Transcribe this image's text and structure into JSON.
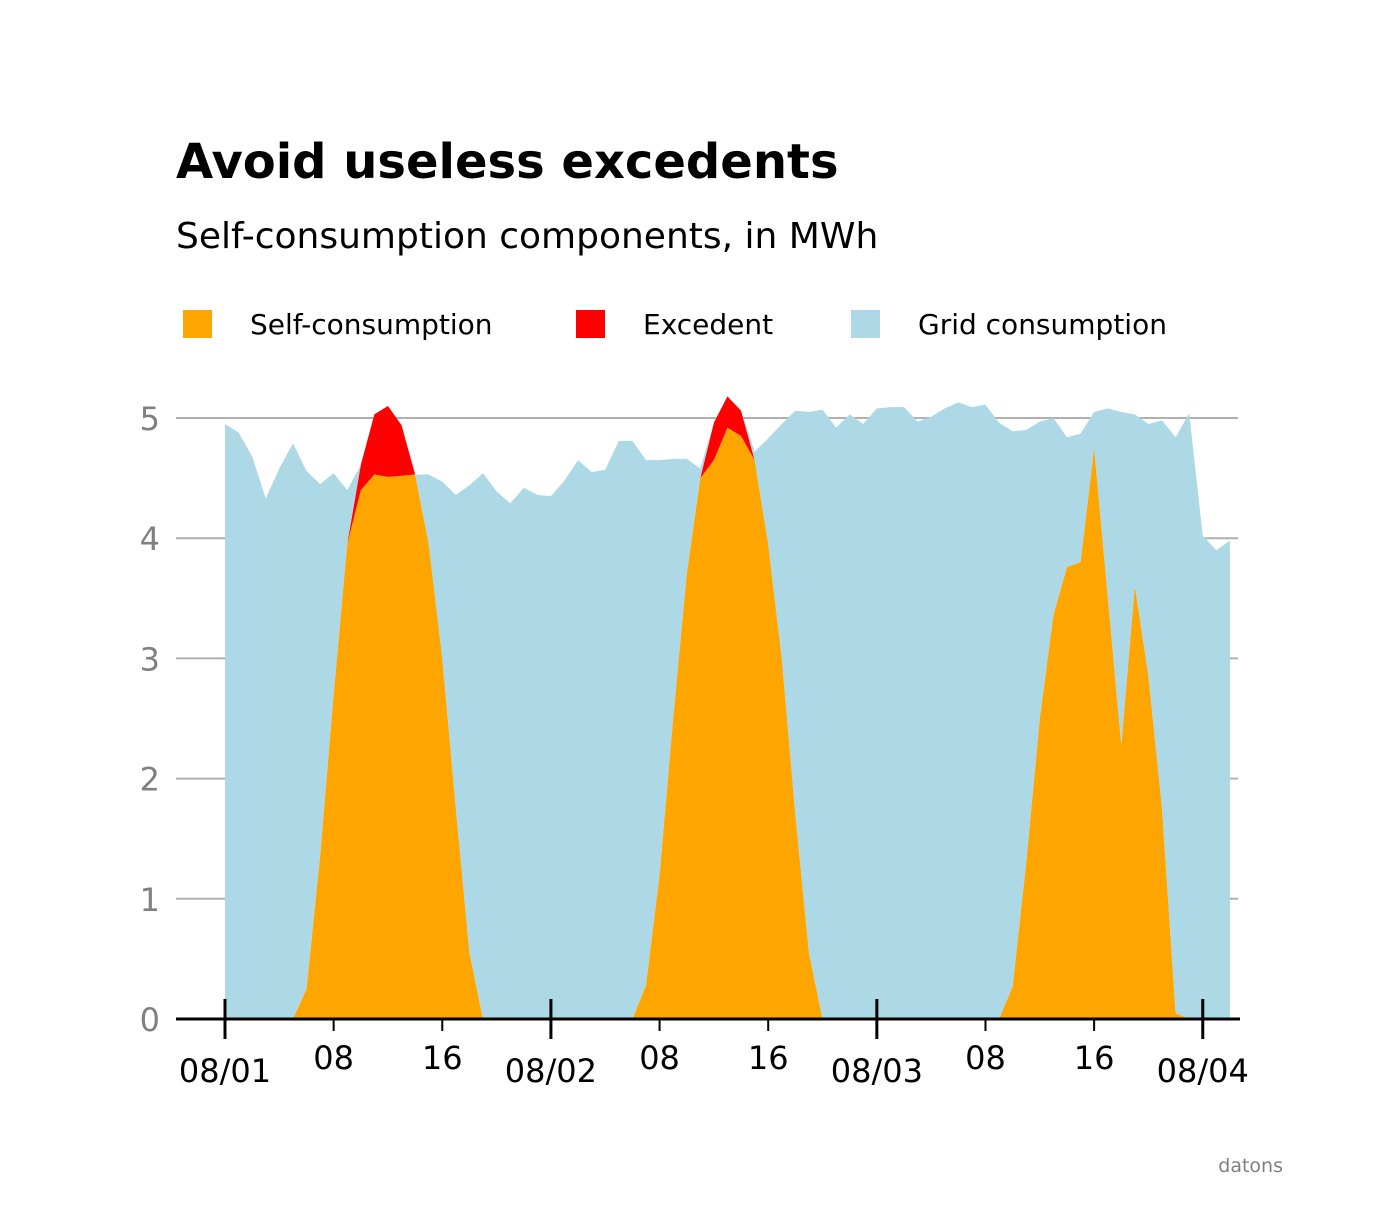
{
  "chart_data": {
    "type": "area",
    "stacked": true,
    "title": "Avoid useless excedents",
    "subtitle": "Self-consumption components, in MWh",
    "xlabel": "",
    "ylabel": "",
    "ylim": [
      0,
      5.3
    ],
    "yticks": [
      0,
      1,
      2,
      3,
      4,
      5
    ],
    "grid": "horizontal",
    "legend_position": "top-left",
    "x_start": "08/01 00:00",
    "x_end": "08/04 00:00",
    "x_step_hours": 1,
    "x_major_ticks": [
      "08/01",
      "08/02",
      "08/03",
      "08/04"
    ],
    "x_minor_ticks": [
      "08",
      "16",
      "08",
      "16",
      "08",
      "16"
    ],
    "series": [
      {
        "name": "Self-consumption",
        "color": "#FFA500",
        "values": [
          0,
          0,
          0,
          0,
          0,
          0,
          0.25,
          1.35,
          2.7,
          3.95,
          4.4,
          4.53,
          4.51,
          4.52,
          4.53,
          3.95,
          3.0,
          1.75,
          0.55,
          0,
          0,
          0,
          0,
          0,
          0,
          0,
          0,
          0,
          0,
          0,
          0,
          0.28,
          1.2,
          2.5,
          3.7,
          4.5,
          4.65,
          4.92,
          4.85,
          4.65,
          3.95,
          3.0,
          1.7,
          0.55,
          0,
          0,
          0,
          0,
          0,
          0,
          0,
          0,
          0,
          0,
          0,
          0,
          0,
          0,
          0.27,
          1.3,
          2.5,
          3.36,
          3.76,
          3.8,
          4.75,
          3.52,
          2.28,
          3.6,
          2.85,
          1.75,
          0.05,
          0,
          0,
          0,
          0
        ]
      },
      {
        "name": "Excedent",
        "color": "#FF0000",
        "values": [
          0,
          0,
          0,
          0,
          0,
          0,
          0,
          0,
          0,
          0,
          0.21,
          0.5,
          0.59,
          0.42,
          0,
          0,
          0,
          0,
          0,
          0,
          0,
          0,
          0,
          0,
          0,
          0,
          0,
          0,
          0,
          0,
          0,
          0,
          0,
          0,
          0,
          0,
          0.31,
          0.26,
          0.21,
          0,
          0,
          0,
          0,
          0,
          0,
          0,
          0,
          0,
          0,
          0,
          0,
          0,
          0,
          0,
          0,
          0,
          0,
          0,
          0,
          0,
          0,
          0,
          0,
          0,
          0,
          0,
          0,
          0,
          0,
          0,
          0,
          0,
          0,
          0,
          0
        ]
      },
      {
        "name": "Grid consumption",
        "color": "#ADD8E6",
        "values": [
          4.95,
          4.88,
          4.68,
          4.33,
          4.58,
          4.79,
          4.31,
          3.1,
          1.84,
          0.45,
          0,
          0,
          0,
          0,
          0,
          0.58,
          1.47,
          2.61,
          3.89,
          4.54,
          4.39,
          4.29,
          4.42,
          4.36,
          4.35,
          4.48,
          4.65,
          4.55,
          4.57,
          4.81,
          4.81,
          4.37,
          3.45,
          2.16,
          0.96,
          0.08,
          0,
          0,
          0,
          0.07,
          0.88,
          1.95,
          3.36,
          4.5,
          5.07,
          4.92,
          5.03,
          4.95,
          5.08,
          5.09,
          5.09,
          4.97,
          5.01,
          5.08,
          5.13,
          5.09,
          5.11,
          4.96,
          4.62,
          3.6,
          2.47,
          1.64,
          1.08,
          1.07,
          0.3,
          1.56,
          2.77,
          1.43,
          2.1,
          3.23,
          4.79,
          5.04,
          4.02,
          3.9,
          3.98
        ]
      }
    ]
  },
  "credit": "datons",
  "watermark": "datons"
}
